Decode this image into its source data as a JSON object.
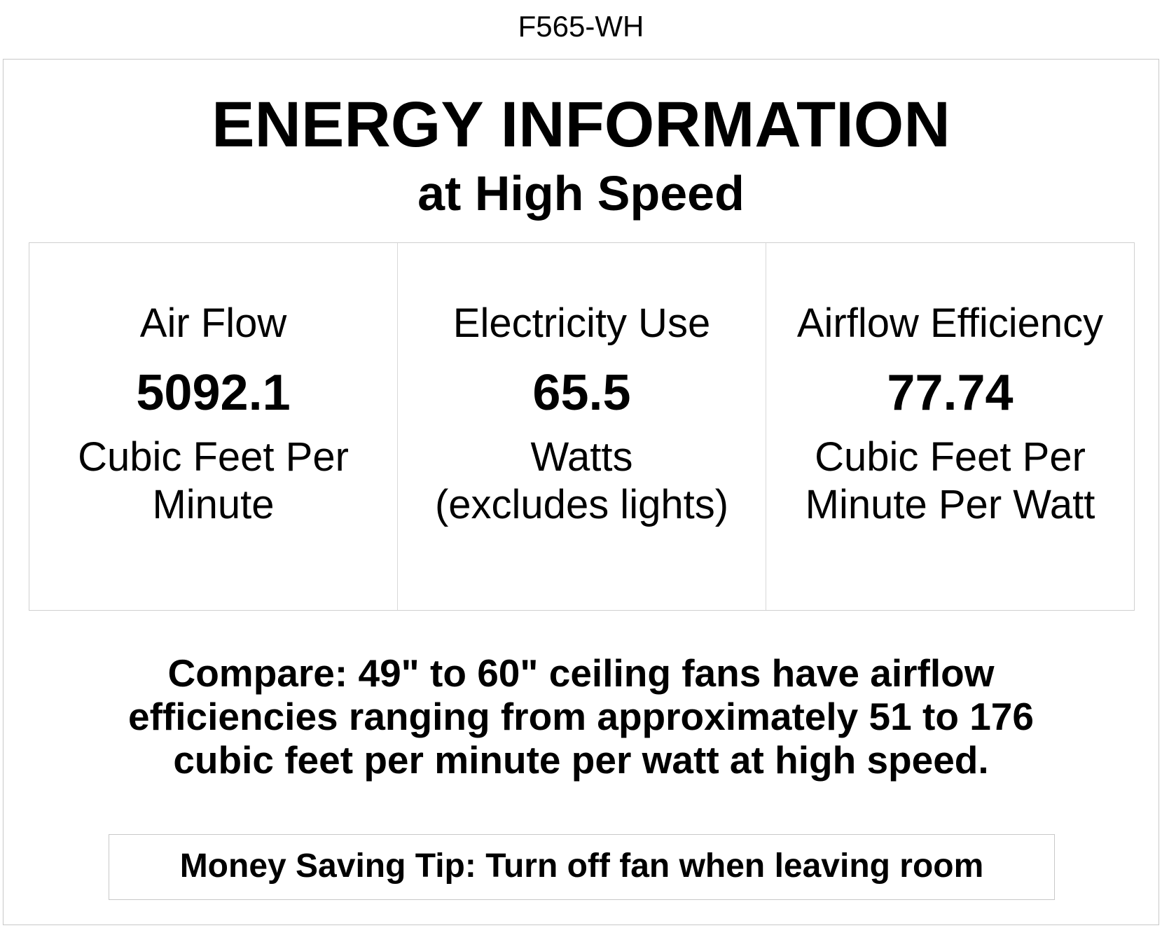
{
  "model": "F565-WH",
  "title": "ENERGY INFORMATION",
  "subtitle": "at High Speed",
  "metrics": [
    {
      "label": "Air Flow",
      "value": "5092.1",
      "unit_lines": [
        "Cubic Feet Per",
        "Minute"
      ]
    },
    {
      "label": "Electricity Use",
      "value": "65.5",
      "unit_lines": [
        "Watts",
        "(excludes lights)"
      ]
    },
    {
      "label": "Airflow Efficiency",
      "value": "77.74",
      "unit_lines": [
        "Cubic Feet Per",
        "Minute Per Watt"
      ]
    }
  ],
  "compare_lines": [
    "Compare: 49\" to 60\" ceiling fans have airflow",
    "efficiencies ranging from approximately 51 to 176",
    "cubic feet per minute per watt at high speed."
  ],
  "tip": "Money Saving Tip: Turn off fan when leaving room"
}
